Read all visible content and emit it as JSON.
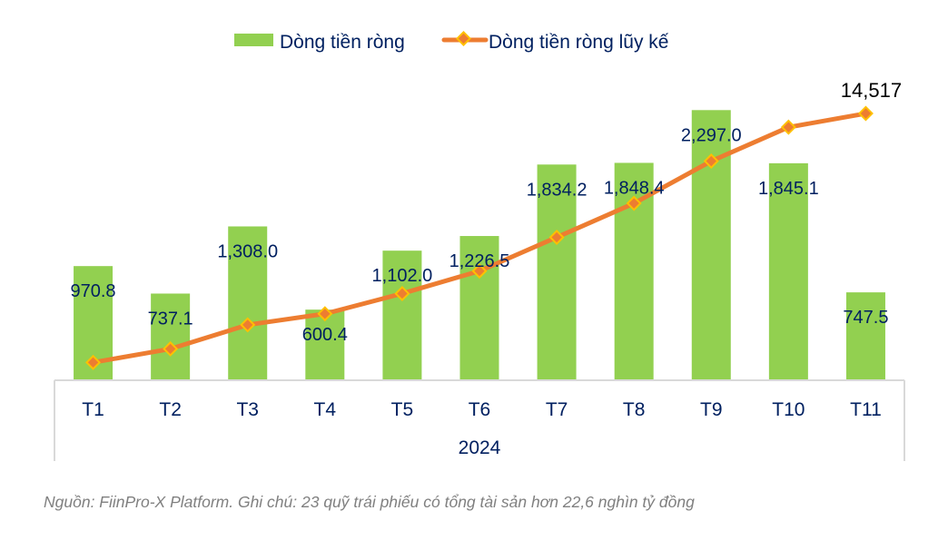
{
  "chart_data": {
    "type": "bar+line",
    "categories": [
      "T1",
      "T2",
      "T3",
      "T4",
      "T5",
      "T6",
      "T7",
      "T8",
      "T9",
      "T10",
      "T11"
    ],
    "xgroup_label": "2024",
    "series": [
      {
        "name": "Dòng tiền ròng",
        "type": "bar",
        "axis": "primary",
        "color": "#92D050",
        "values": [
          970.8,
          737.1,
          1308.0,
          600.4,
          1102.0,
          1226.5,
          1834.2,
          1848.4,
          2297.0,
          1845.1,
          747.5
        ],
        "labels": [
          "970.8",
          "737.1",
          "1,308.0",
          "600.4",
          "1,102.0",
          "1,226.5",
          "1,834.2",
          "1,848.4",
          "2,297.0",
          "1,845.1",
          "747.5"
        ]
      },
      {
        "name": "Dòng tiền ròng lũy kế",
        "type": "line",
        "axis": "secondary",
        "color": "#ED7D31",
        "marker_color": "#FFC000",
        "values": [
          970.8,
          1707.9,
          3015.9,
          3616.3,
          4718.3,
          5944.8,
          7779.0,
          9627.4,
          11924.4,
          13769.5,
          14517.0
        ],
        "end_label": "14,517"
      }
    ],
    "ylim_primary": [
      0,
      2500
    ],
    "ylim_secondary": [
      0,
      16000
    ],
    "axes_visible": false,
    "grid": false,
    "legend_position": "top",
    "text_color": "#002060"
  },
  "footnote": "Nguồn: FiinPro-X Platform. Ghi chú: 23 quỹ trái phiếu có tổng tài sản hơn 22,6 nghìn tỷ đồng"
}
